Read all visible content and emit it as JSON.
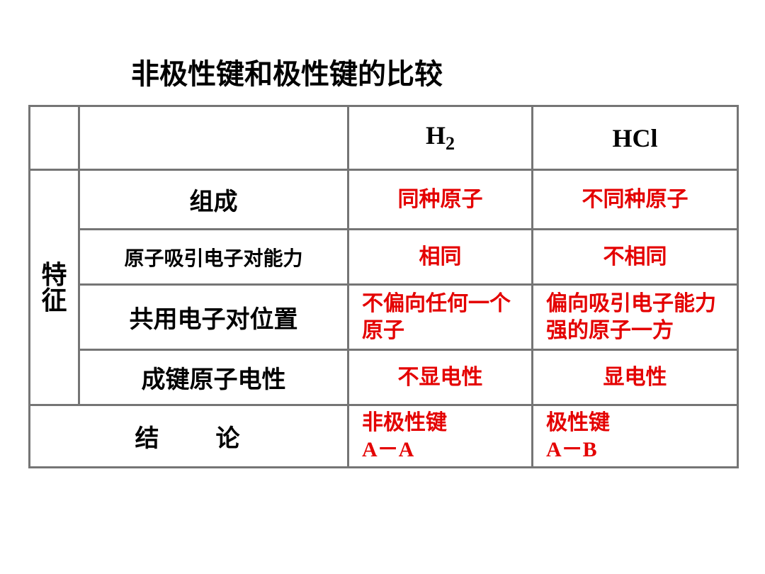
{
  "title": "非极性键和极性键的比较",
  "header": {
    "h2": "H",
    "h2_sub": "2",
    "hcl": "HCl"
  },
  "rowcat": {
    "top": "特",
    "bottom": "征"
  },
  "rows": {
    "r1": {
      "label": "组成",
      "h2": "同种原子",
      "hcl": "不同种原子"
    },
    "r2": {
      "label": "原子吸引电子对能力",
      "h2": "相同",
      "hcl": "不相同"
    },
    "r3": {
      "label": "共用电子对位置",
      "h2": "不偏向任何一个原子",
      "hcl": "偏向吸引电子能力强的原子一方"
    },
    "r4": {
      "label": "成键原子电性",
      "h2": "不显电性",
      "hcl": "显电性"
    }
  },
  "conclusion": {
    "label": "结　　论",
    "h2_l1": "非极性键",
    "h2_l2": "A－A",
    "hcl_l1": "极性键",
    "hcl_l2": "A－B"
  },
  "colors": {
    "text": "#000000",
    "value": "#e40000",
    "border": "#757575",
    "bg": "#ffffff"
  }
}
